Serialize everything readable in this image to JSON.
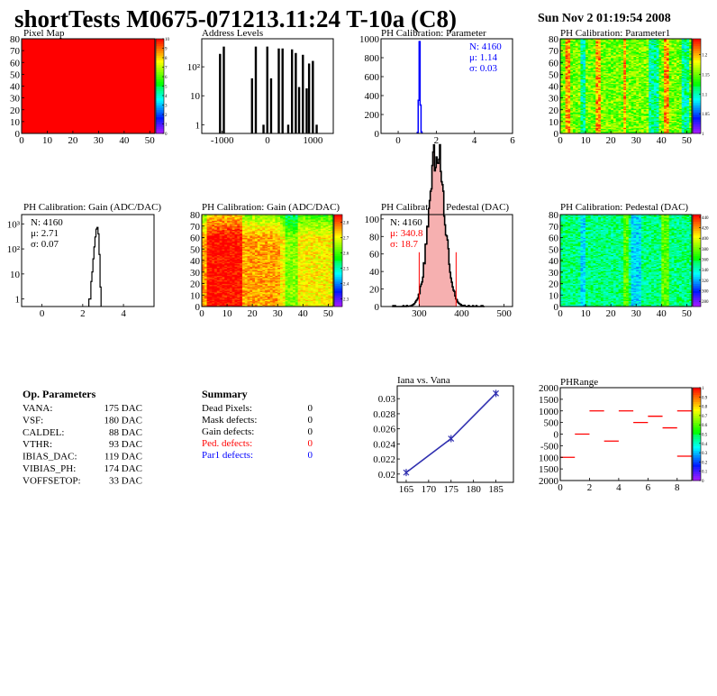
{
  "header": {
    "title": "shortTests M0675-071213.11:24 T-10a (C8)",
    "date": "Sun Nov  2 01:19:54 2008"
  },
  "chart_data": [
    {
      "id": "pixel_map",
      "type": "heatmap",
      "title": "Pixel Map",
      "xlim": [
        0,
        52
      ],
      "ylim": [
        0,
        80
      ],
      "x_ticks": [
        "0",
        "10",
        "20",
        "30",
        "40",
        "50"
      ],
      "y_ticks": [
        "0",
        "10",
        "20",
        "30",
        "40",
        "50",
        "60",
        "70",
        "80"
      ],
      "zlim": [
        0,
        10
      ],
      "z_ticks": [
        "0",
        "1",
        "2",
        "3",
        "4",
        "5",
        "6",
        "7",
        "8",
        "9",
        "10"
      ],
      "uniform_value": 10
    },
    {
      "id": "address_levels",
      "type": "bar",
      "title": "Address Levels",
      "xlim": [
        -1450,
        1450
      ],
      "log_y": true,
      "ylim": [
        0.5,
        930
      ],
      "x_ticks": [
        {
          "v": -1000,
          "label": "-1000"
        },
        {
          "v": 0,
          "label": "0"
        },
        {
          "v": 1000,
          "label": "1000"
        }
      ],
      "y_ticks": [
        {
          "v": 1,
          "label": "1"
        },
        {
          "v": 10,
          "label": "10"
        },
        {
          "v": 100,
          "label": "10²"
        }
      ],
      "peaks": [
        {
          "x": -1005,
          "counts": [
            280,
            500
          ]
        },
        {
          "x": -300,
          "counts": [
            40,
            500
          ]
        },
        {
          "x": -5,
          "counts": [
            1,
            500,
            40
          ]
        },
        {
          "x": 290,
          "counts": [
            430,
            430
          ]
        },
        {
          "x": 540,
          "counts": [
            1,
            400,
            300
          ]
        },
        {
          "x": 780,
          "counts": [
            20,
            260,
            18
          ]
        },
        {
          "x": 1000,
          "counts": [
            130,
            160,
            1
          ]
        }
      ]
    },
    {
      "id": "ph_parameter",
      "type": "bar",
      "title": "PH Calibration: Parameter",
      "xlim": [
        -0.9,
        6
      ],
      "ylim": [
        0,
        1000
      ],
      "color": "#0000ff",
      "x_ticks": [
        {
          "v": 0,
          "label": "0"
        },
        {
          "v": 2,
          "label": "2"
        },
        {
          "v": 4,
          "label": "4"
        },
        {
          "v": 6,
          "label": "6"
        }
      ],
      "y_ticks": [
        {
          "v": 0,
          "label": "0"
        },
        {
          "v": 200,
          "label": "200"
        },
        {
          "v": 400,
          "label": "400"
        },
        {
          "v": 600,
          "label": "600"
        },
        {
          "v": 800,
          "label": "800"
        },
        {
          "v": 1000,
          "label": "1000"
        }
      ],
      "bin_width": 0.05,
      "bins": [
        [
          1.0,
          10
        ],
        [
          1.05,
          350
        ],
        [
          1.1,
          970
        ],
        [
          1.15,
          300
        ],
        [
          1.2,
          15
        ]
      ],
      "stats": {
        "n": "N: 4160",
        "mean": "μ: 1.14",
        "sigma": "σ: 0.03"
      }
    },
    {
      "id": "ph_parameter1",
      "type": "heatmap",
      "title": "PH Calibration: Parameter1",
      "xlim": [
        0,
        52
      ],
      "ylim": [
        0,
        80
      ],
      "x_ticks": [
        "0",
        "10",
        "20",
        "30",
        "40",
        "50"
      ],
      "y_ticks": [
        "0",
        "10",
        "20",
        "30",
        "40",
        "50",
        "60",
        "70",
        "80"
      ],
      "zlim": [
        1.0,
        1.24
      ],
      "z_ticks": [
        {
          "v": 1.0,
          "label": "1"
        },
        {
          "v": 1.05,
          "label": "1.05"
        },
        {
          "v": 1.1,
          "label": "1.1"
        },
        {
          "v": 1.15,
          "label": "1.15"
        },
        {
          "v": 1.2,
          "label": "1.2"
        }
      ],
      "base": 1.15,
      "hot_columns": [
        2,
        3,
        14,
        15,
        25,
        41,
        42
      ],
      "cold_columns": [
        8,
        9,
        35,
        36,
        37,
        38,
        48,
        49,
        50
      ],
      "spread": 0.025
    },
    {
      "id": "ph_gain",
      "type": "bar",
      "title": "PH Calibration: Gain (ADC/DAC)",
      "xlim": [
        -1,
        5.5
      ],
      "log_y": true,
      "ylim": [
        0.5,
        2350
      ],
      "x_ticks": [
        {
          "v": 0,
          "label": "0"
        },
        {
          "v": 2,
          "label": "2"
        },
        {
          "v": 4,
          "label": "4"
        }
      ],
      "y_ticks": [
        {
          "v": 1,
          "label": "1"
        },
        {
          "v": 10,
          "label": "10"
        },
        {
          "v": 100,
          "label": "10²"
        },
        {
          "v": 1000,
          "label": "10³"
        }
      ],
      "bin_width": 0.05,
      "bins": [
        [
          2.3,
          1
        ],
        [
          2.35,
          1
        ],
        [
          2.4,
          5
        ],
        [
          2.45,
          12
        ],
        [
          2.5,
          40
        ],
        [
          2.55,
          120
        ],
        [
          2.6,
          300
        ],
        [
          2.65,
          620
        ],
        [
          2.7,
          720
        ],
        [
          2.75,
          400
        ],
        [
          2.8,
          60
        ],
        [
          2.85,
          3
        ]
      ],
      "stats": {
        "n": "N: 4160",
        "mean": "μ: 2.71",
        "sigma": "σ: 0.07"
      }
    },
    {
      "id": "ph_gain_map",
      "type": "heatmap",
      "title": "PH Calibration: Gain (ADC/DAC)",
      "xlim": [
        0,
        52
      ],
      "ylim": [
        0,
        80
      ],
      "x_ticks": [
        "0",
        "10",
        "20",
        "30",
        "40",
        "50"
      ],
      "y_ticks": [
        "0",
        "10",
        "20",
        "30",
        "40",
        "50",
        "60",
        "70",
        "80"
      ],
      "zlim": [
        2.25,
        2.85
      ],
      "z_ticks": [
        {
          "v": 2.3,
          "label": "2.3"
        },
        {
          "v": 2.4,
          "label": "2.4"
        },
        {
          "v": 2.5,
          "label": "2.5"
        },
        {
          "v": 2.6,
          "label": "2.6"
        },
        {
          "v": 2.7,
          "label": "2.7"
        },
        {
          "v": 2.8,
          "label": "2.8"
        }
      ],
      "base": 2.76,
      "hot_columns": [
        2,
        3,
        4,
        5,
        6,
        7,
        8,
        9,
        10,
        11,
        12,
        13,
        14,
        15
      ],
      "cold_columns": [
        33,
        34,
        35,
        36,
        37
      ],
      "spread": 0.04
    },
    {
      "id": "ph_pedestal",
      "type": "bar",
      "title": "PH Calibration: Pedestal (DAC)",
      "xlim": [
        210,
        520
      ],
      "ylim": [
        0,
        105
      ],
      "x_ticks": [
        {
          "v": 300,
          "label": "300"
        },
        {
          "v": 400,
          "label": "400"
        },
        {
          "v": 500,
          "label": "500"
        }
      ],
      "y_ticks": [
        {
          "v": 0,
          "label": "0"
        },
        {
          "v": 20,
          "label": "20"
        },
        {
          "v": 40,
          "label": "40"
        },
        {
          "v": 60,
          "label": "60"
        },
        {
          "v": 80,
          "label": "80"
        },
        {
          "v": 100,
          "label": "100"
        }
      ],
      "mean": 340.8,
      "sigma": 18.7,
      "entries": 4160,
      "cuts": [
        300,
        387
      ],
      "cut_height": 62,
      "cut_color": "#ff0000",
      "stats": {
        "n": "N: 4160",
        "mean": "μ: 340.8",
        "sigma": "σ: 18.7"
      }
    },
    {
      "id": "ph_pedestal_map",
      "type": "heatmap",
      "title": "PH Calibration: Pedestal (DAC)",
      "xlim": [
        0,
        52
      ],
      "ylim": [
        0,
        80
      ],
      "x_ticks": [
        "0",
        "10",
        "20",
        "30",
        "40",
        "50"
      ],
      "y_ticks": [
        "0",
        "10",
        "20",
        "30",
        "40",
        "50",
        "60",
        "70",
        "80"
      ],
      "zlim": [
        270,
        445
      ],
      "z_ticks": [
        {
          "v": 280,
          "label": "280"
        },
        {
          "v": 300,
          "label": "300"
        },
        {
          "v": 320,
          "label": "320"
        },
        {
          "v": 340,
          "label": "340"
        },
        {
          "v": 360,
          "label": "360"
        },
        {
          "v": 380,
          "label": "380"
        },
        {
          "v": 400,
          "label": "400"
        },
        {
          "v": 420,
          "label": "420"
        },
        {
          "v": 440,
          "label": "440"
        }
      ],
      "base": 350,
      "hot_columns": [
        25,
        26,
        40,
        41,
        42
      ],
      "cold_columns": [
        8,
        9,
        28,
        29,
        30,
        31
      ],
      "spread": 12
    },
    {
      "id": "iana_vs_vana",
      "type": "line",
      "title": "Iana vs. Vana",
      "xlim": [
        163,
        188.9
      ],
      "ylim": [
        0.0189,
        0.0317
      ],
      "color": "#3030b0",
      "x_ticks": [
        {
          "v": 165,
          "label": "165"
        },
        {
          "v": 170,
          "label": "170"
        },
        {
          "v": 175,
          "label": "175"
        },
        {
          "v": 180,
          "label": "180"
        },
        {
          "v": 185,
          "label": "185"
        }
      ],
      "y_ticks": [
        {
          "v": 0.02,
          "label": "0.02"
        },
        {
          "v": 0.022,
          "label": "0.022"
        },
        {
          "v": 0.024,
          "label": "0.024"
        },
        {
          "v": 0.026,
          "label": "0.026"
        },
        {
          "v": 0.028,
          "label": "0.028"
        },
        {
          "v": 0.03,
          "label": "0.03"
        }
      ],
      "x": [
        165,
        175,
        185
      ],
      "y": [
        0.0202,
        0.0247,
        0.0307
      ]
    },
    {
      "id": "ph_range",
      "type": "heatmap",
      "title": "PHRange",
      "xlim": [
        0,
        9
      ],
      "ylim": [
        -2000,
        2000
      ],
      "color": "#ff0000",
      "x_ticks": [
        {
          "v": 0,
          "label": "0"
        },
        {
          "v": 2,
          "label": "2"
        },
        {
          "v": 4,
          "label": "4"
        },
        {
          "v": 6,
          "label": "6"
        },
        {
          "v": 8,
          "label": "8"
        }
      ],
      "y_ticks": [
        {
          "v": 2000,
          "label": "2000"
        },
        {
          "v": 1500,
          "label": "1500"
        },
        {
          "v": 1000,
          "label": "1000"
        },
        {
          "v": 500,
          "label": "500"
        },
        {
          "v": 0,
          "label": "0"
        },
        {
          "v": -500,
          "label": "-500"
        },
        {
          "v": -1000,
          "label": "1000"
        },
        {
          "v": -1500,
          "label": "1500"
        },
        {
          "v": -2000,
          "label": "2000"
        }
      ],
      "zlim": [
        0,
        1
      ],
      "z_ticks": [
        {
          "v": 0,
          "label": "0"
        },
        {
          "v": 0.1,
          "label": "0.1"
        },
        {
          "v": 0.2,
          "label": "0.2"
        },
        {
          "v": 0.3,
          "label": "0.3"
        },
        {
          "v": 0.4,
          "label": "0.4"
        },
        {
          "v": 0.5,
          "label": "0.5"
        },
        {
          "v": 0.6,
          "label": "0.6"
        },
        {
          "v": 0.7,
          "label": "0.7"
        },
        {
          "v": 0.8,
          "label": "0.8"
        },
        {
          "v": 0.9,
          "label": "0.9"
        },
        {
          "v": 1,
          "label": "1"
        }
      ],
      "segments": [
        [
          0,
          -1000
        ],
        [
          1,
          0
        ],
        [
          2,
          1000
        ],
        [
          3,
          -300
        ],
        [
          4,
          1000
        ],
        [
          5,
          500
        ],
        [
          6,
          770
        ],
        [
          7,
          270
        ],
        [
          8,
          1000
        ],
        [
          8,
          -950
        ]
      ]
    }
  ],
  "op_parameters": {
    "title": "Op. Parameters",
    "rows": [
      {
        "name": "VANA:",
        "value": "175 DAC"
      },
      {
        "name": "VSF:",
        "value": "180 DAC"
      },
      {
        "name": "CALDEL:",
        "value": "88 DAC"
      },
      {
        "name": "VTHR:",
        "value": "93 DAC"
      },
      {
        "name": "IBIAS_DAC:",
        "value": "119 DAC"
      },
      {
        "name": "VIBIAS_PH:",
        "value": "174 DAC"
      },
      {
        "name": "VOFFSETOP:",
        "value": "33 DAC"
      }
    ]
  },
  "summary": {
    "title": "Summary",
    "rows": [
      {
        "name": "Dead Pixels:",
        "value": "0",
        "color": "#000000"
      },
      {
        "name": "Mask defects:",
        "value": "0",
        "color": "#000000"
      },
      {
        "name": "Gain defects:",
        "value": "0",
        "color": "#000000"
      },
      {
        "name": "Ped. defects:",
        "value": "0",
        "color": "#ff0000"
      },
      {
        "name": "Par1 defects:",
        "value": "0",
        "color": "#0000ff"
      }
    ]
  }
}
